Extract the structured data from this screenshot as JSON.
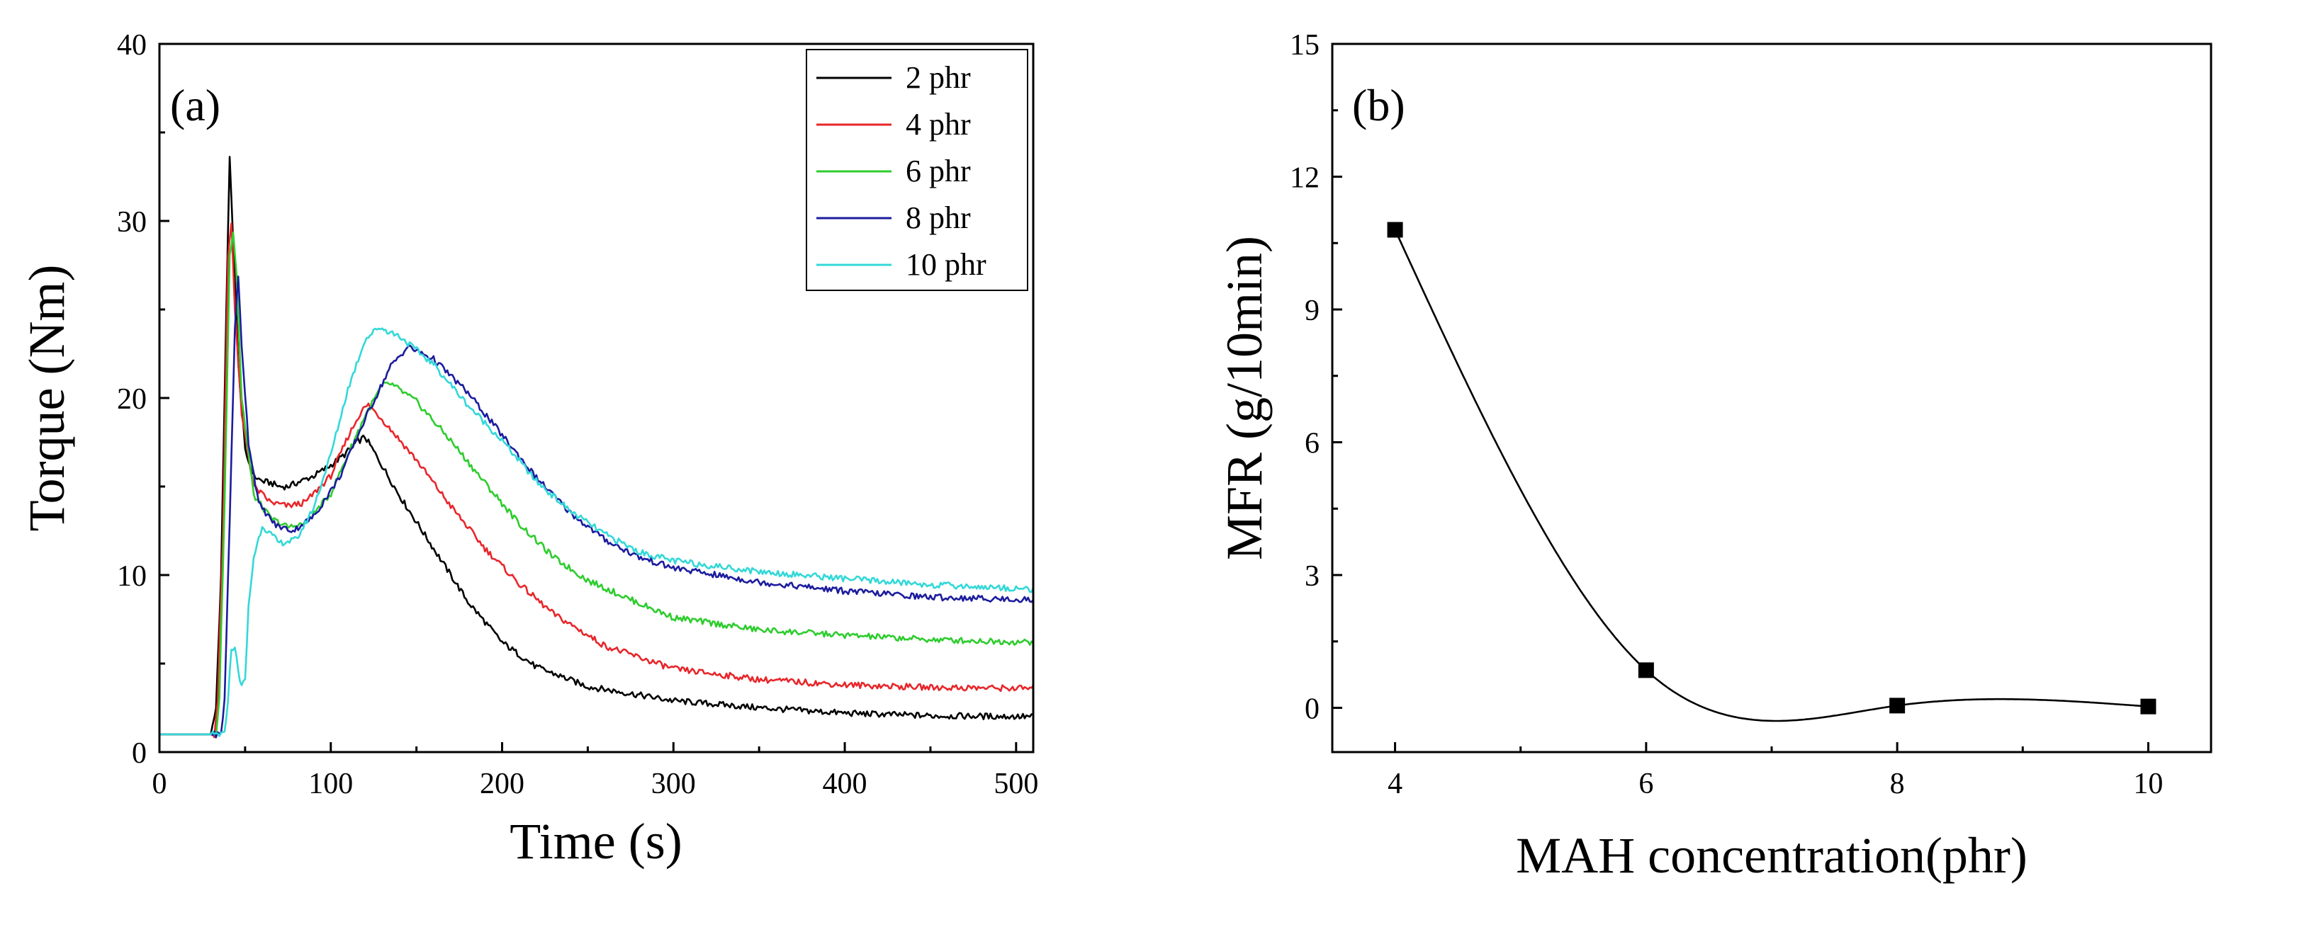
{
  "chart_data": [
    {
      "panel": "(a)",
      "type": "line",
      "title": "",
      "xlabel": "Time (s)",
      "ylabel": "Torque (Nm)",
      "xlim": [
        0,
        510
      ],
      "ylim": [
        0,
        40
      ],
      "xticks": [
        0,
        100,
        200,
        300,
        400,
        500
      ],
      "yticks": [
        0,
        10,
        20,
        30,
        40
      ],
      "legend": "top-right",
      "series": [
        {
          "name": "2 phr",
          "color": "#000000",
          "points": [
            [
              0,
              1
            ],
            [
              30,
              1
            ],
            [
              33,
              2.5
            ],
            [
              36,
              10
            ],
            [
              39,
              25
            ],
            [
              41,
              33.5
            ],
            [
              43,
              29
            ],
            [
              46,
              22
            ],
            [
              50,
              17
            ],
            [
              55,
              15.6
            ],
            [
              60,
              15.3
            ],
            [
              65,
              15.2
            ],
            [
              70,
              15
            ],
            [
              75,
              15
            ],
            [
              80,
              15.2
            ],
            [
              90,
              15.6
            ],
            [
              100,
              16.2
            ],
            [
              108,
              16.8
            ],
            [
              115,
              17.5
            ],
            [
              120,
              17.8
            ],
            [
              125,
              17
            ],
            [
              140,
              14.5
            ],
            [
              160,
              11.5
            ],
            [
              180,
              8.5
            ],
            [
              200,
              6.2
            ],
            [
              220,
              4.8
            ],
            [
              250,
              3.7
            ],
            [
              300,
              2.9
            ],
            [
              350,
              2.5
            ],
            [
              400,
              2.2
            ],
            [
              450,
              2.05
            ],
            [
              510,
              2
            ]
          ]
        },
        {
          "name": "4 phr",
          "color": "#e8262a",
          "points": [
            [
              0,
              1
            ],
            [
              32,
              1
            ],
            [
              34,
              3
            ],
            [
              37,
              12
            ],
            [
              40,
              28
            ],
            [
              42,
              30
            ],
            [
              44,
              25
            ],
            [
              48,
              19
            ],
            [
              55,
              15
            ],
            [
              65,
              14.1
            ],
            [
              75,
              13.9
            ],
            [
              85,
              14.1
            ],
            [
              100,
              15.6
            ],
            [
              110,
              17.8
            ],
            [
              118,
              19.3
            ],
            [
              122,
              19.6
            ],
            [
              130,
              18.8
            ],
            [
              150,
              16.5
            ],
            [
              170,
              13.9
            ],
            [
              190,
              11.5
            ],
            [
              210,
              9.5
            ],
            [
              230,
              7.8
            ],
            [
              260,
              6
            ],
            [
              300,
              4.7
            ],
            [
              350,
              4.1
            ],
            [
              400,
              3.8
            ],
            [
              450,
              3.65
            ],
            [
              510,
              3.6
            ]
          ]
        },
        {
          "name": "6 phr",
          "color": "#2ecc2e",
          "points": [
            [
              0,
              1
            ],
            [
              33,
              1
            ],
            [
              35,
              3
            ],
            [
              38,
              14
            ],
            [
              41,
              28
            ],
            [
              43,
              29.5
            ],
            [
              45,
              27
            ],
            [
              48,
              20
            ],
            [
              55,
              14.5
            ],
            [
              65,
              13.2
            ],
            [
              75,
              12.7
            ],
            [
              85,
              12.9
            ],
            [
              100,
              14.6
            ],
            [
              110,
              16.8
            ],
            [
              120,
              19
            ],
            [
              130,
              20.7
            ],
            [
              135,
              20.8
            ],
            [
              150,
              19.8
            ],
            [
              170,
              17.6
            ],
            [
              190,
              15.2
            ],
            [
              210,
              12.9
            ],
            [
              230,
              11
            ],
            [
              250,
              9.7
            ],
            [
              280,
              8.4
            ],
            [
              300,
              7.6
            ],
            [
              350,
              6.9
            ],
            [
              400,
              6.6
            ],
            [
              450,
              6.35
            ],
            [
              510,
              6.2
            ]
          ]
        },
        {
          "name": "8 phr",
          "color": "#1c1c9e",
          "points": [
            [
              0,
              1
            ],
            [
              36,
              1
            ],
            [
              38,
              3
            ],
            [
              41,
              13
            ],
            [
              44,
              24
            ],
            [
              46,
              26.8
            ],
            [
              48,
              23
            ],
            [
              52,
              17.5
            ],
            [
              58,
              14
            ],
            [
              68,
              12.8
            ],
            [
              78,
              12.5
            ],
            [
              90,
              13.3
            ],
            [
              105,
              15.5
            ],
            [
              120,
              18.8
            ],
            [
              135,
              21.8
            ],
            [
              145,
              22.9
            ],
            [
              160,
              22.2
            ],
            [
              180,
              20.3
            ],
            [
              200,
              17.9
            ],
            [
              220,
              15.5
            ],
            [
              240,
              13.5
            ],
            [
              260,
              12
            ],
            [
              280,
              11
            ],
            [
              300,
              10.4
            ],
            [
              350,
              9.6
            ],
            [
              400,
              9.1
            ],
            [
              450,
              8.75
            ],
            [
              510,
              8.6
            ]
          ]
        },
        {
          "name": "10 phr",
          "color": "#33d8d8",
          "points": [
            [
              0,
              1
            ],
            [
              38,
              1
            ],
            [
              40,
              3
            ],
            [
              42,
              5.8
            ],
            [
              44,
              6
            ],
            [
              46,
              4.5
            ],
            [
              48,
              3.8
            ],
            [
              50,
              4
            ],
            [
              52,
              8.2
            ],
            [
              55,
              11
            ],
            [
              60,
              12.8
            ],
            [
              70,
              11.8
            ],
            [
              80,
              12
            ],
            [
              90,
              13.8
            ],
            [
              100,
              16.8
            ],
            [
              110,
              20.5
            ],
            [
              120,
              23.3
            ],
            [
              128,
              24
            ],
            [
              140,
              23.5
            ],
            [
              160,
              21.9
            ],
            [
              180,
              19.6
            ],
            [
              200,
              17.6
            ],
            [
              220,
              15.3
            ],
            [
              240,
              13.6
            ],
            [
              260,
              12.3
            ],
            [
              280,
              11.3
            ],
            [
              300,
              10.8
            ],
            [
              350,
              10.2
            ],
            [
              400,
              9.8
            ],
            [
              450,
              9.45
            ],
            [
              510,
              9.2
            ]
          ]
        }
      ]
    },
    {
      "panel": "(b)",
      "type": "line",
      "title": "",
      "xlabel": "MAH concentration(phr)",
      "ylabel": "MFR (g/10min)",
      "xlim": [
        3.5,
        10.5
      ],
      "ylim": [
        -1,
        15
      ],
      "xticks": [
        4,
        6,
        8,
        10
      ],
      "yticks": [
        0,
        3,
        6,
        9,
        12,
        15
      ],
      "marker": "square",
      "series": [
        {
          "name": "MFR",
          "color": "#000000",
          "x": [
            4,
            6,
            8,
            10
          ],
          "y": [
            10.8,
            0.85,
            0.05,
            0.03
          ]
        }
      ]
    }
  ]
}
